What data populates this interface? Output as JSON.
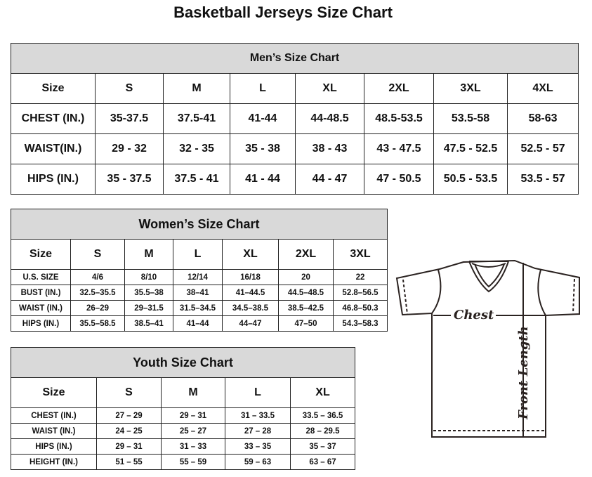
{
  "title": "Basketball Jerseys Size Chart",
  "men": {
    "title": "Men’s Size Chart",
    "header": [
      "Size",
      "S",
      "M",
      "L",
      "XL",
      "2XL",
      "3XL",
      "4XL"
    ],
    "rows": [
      [
        "CHEST (IN.)",
        "35-37.5",
        "37.5-41",
        "41-44",
        "44-48.5",
        "48.5-53.5",
        "53.5-58",
        "58-63"
      ],
      [
        "WAIST(IN.)",
        "29 - 32",
        "32 - 35",
        "35 - 38",
        "38 - 43",
        "43 - 47.5",
        "47.5 - 52.5",
        "52.5 - 57"
      ],
      [
        "HIPS (IN.)",
        "35 - 37.5",
        "37.5 - 41",
        "41 - 44",
        "44 - 47",
        "47 - 50.5",
        "50.5 - 53.5",
        "53.5 - 57"
      ]
    ]
  },
  "women": {
    "title": "Women’s Size Chart",
    "header": [
      "Size",
      "S",
      "M",
      "L",
      "XL",
      "2XL",
      "3XL"
    ],
    "rows": [
      [
        "U.S. SIZE",
        "4/6",
        "8/10",
        "12/14",
        "16/18",
        "20",
        "22"
      ],
      [
        "BUST (IN.)",
        "32.5–35.5",
        "35.5–38",
        "38–41",
        "41–44.5",
        "44.5–48.5",
        "52.8–56.5"
      ],
      [
        "WAIST (IN.)",
        "26–29",
        "29–31.5",
        "31.5–34.5",
        "34.5–38.5",
        "38.5–42.5",
        "46.8–50.3"
      ],
      [
        "HIPS (IN.)",
        "35.5–58.5",
        "38.5–41",
        "41–44",
        "44–47",
        "47–50",
        "54.3–58.3"
      ]
    ]
  },
  "youth": {
    "title": "Youth Size Chart",
    "header": [
      "Size",
      "S",
      "M",
      "L",
      "XL"
    ],
    "rows": [
      [
        "CHEST (IN.)",
        "27 – 29",
        "29 – 31",
        "31 – 33.5",
        "33.5 – 36.5"
      ],
      [
        "WAIST (IN.)",
        "24 – 25",
        "25 – 27",
        "27 – 28",
        "28 – 29.5"
      ],
      [
        "HIPS (IN.)",
        "29 – 31",
        "31 – 33",
        "33 – 35",
        "35 – 37"
      ],
      [
        "HEIGHT (IN.)",
        "51 – 55",
        "55 – 59",
        "59 – 63",
        "63 – 67"
      ]
    ]
  },
  "diagram": {
    "chest_label": "Chest",
    "length_label": "Front Length"
  }
}
